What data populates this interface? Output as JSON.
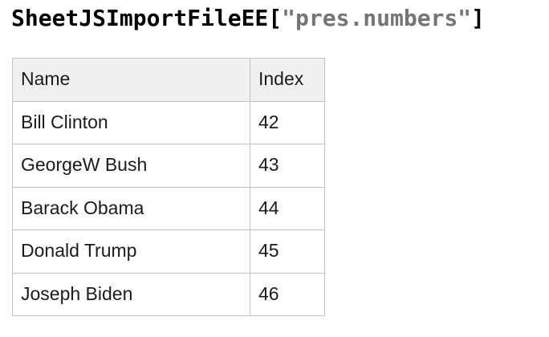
{
  "heading": {
    "object_name": "SheetJSImportFileEE",
    "open_bracket": "[",
    "sheet_name": "\"pres.numbers\"",
    "close_bracket": "]"
  },
  "table": {
    "headers": {
      "name": "Name",
      "index": "Index"
    },
    "rows": [
      {
        "name": "Bill Clinton",
        "index": "42"
      },
      {
        "name": "GeorgeW Bush",
        "index": "43"
      },
      {
        "name": "Barack Obama",
        "index": "44"
      },
      {
        "name": "Donald Trump",
        "index": "45"
      },
      {
        "name": "Joseph Biden",
        "index": "46"
      }
    ]
  },
  "colors": {
    "background": "#ffffff",
    "heading_text": "#000000",
    "sheet_name_text": "#757575",
    "table_text": "#1b1b1b",
    "header_bg": "#f0f0f0",
    "border": "#c2c2c2"
  }
}
